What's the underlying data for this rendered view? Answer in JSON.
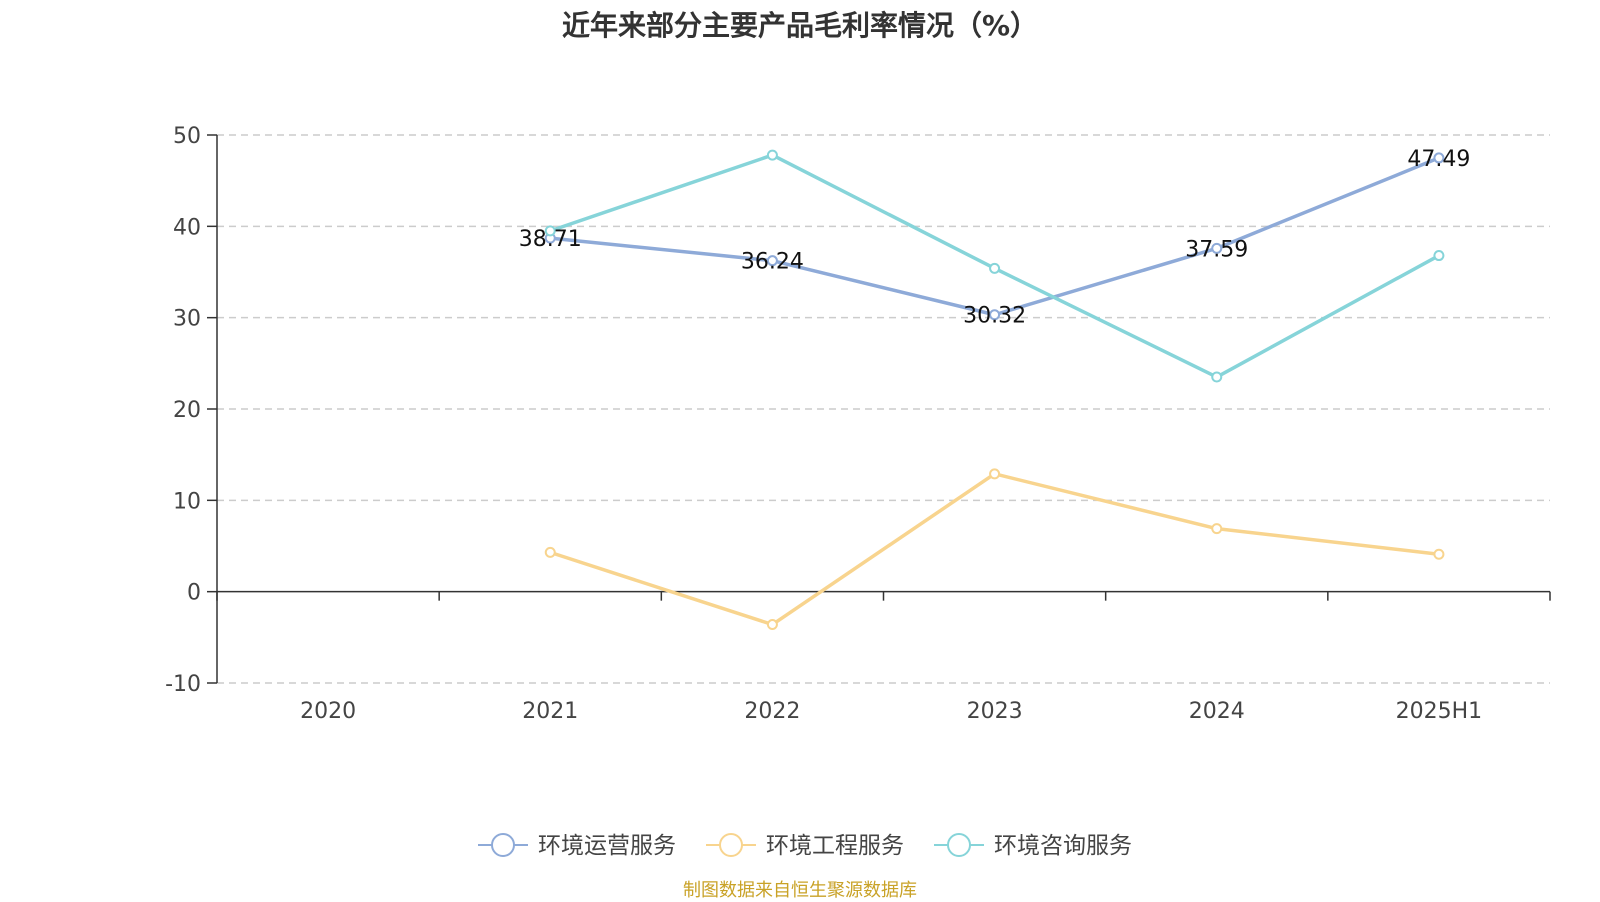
{
  "chart_data": {
    "type": "line",
    "title": "近年来部分主要产品毛利率情况（%）",
    "categories": [
      "2020",
      "2021",
      "2022",
      "2023",
      "2024",
      "2025H1"
    ],
    "ylim": [
      -10,
      50
    ],
    "yticks": [
      -10,
      0,
      10,
      20,
      30,
      40,
      50
    ],
    "grid": true,
    "legend_position": "bottom-center",
    "series": [
      {
        "name": "环境运营服务",
        "color": "#8eaad8",
        "values": [
          null,
          38.71,
          36.24,
          30.32,
          37.59,
          47.49
        ],
        "labels": true
      },
      {
        "name": "环境工程服务",
        "color": "#f8d48e",
        "values": [
          null,
          4.3,
          -3.6,
          12.9,
          6.9,
          4.1
        ],
        "labels": false
      },
      {
        "name": "环境咨询服务",
        "color": "#86d4d9",
        "values": [
          null,
          39.5,
          47.8,
          35.4,
          23.5,
          36.8
        ],
        "labels": false
      }
    ]
  },
  "source": "制图数据来自恒生聚源数据库"
}
